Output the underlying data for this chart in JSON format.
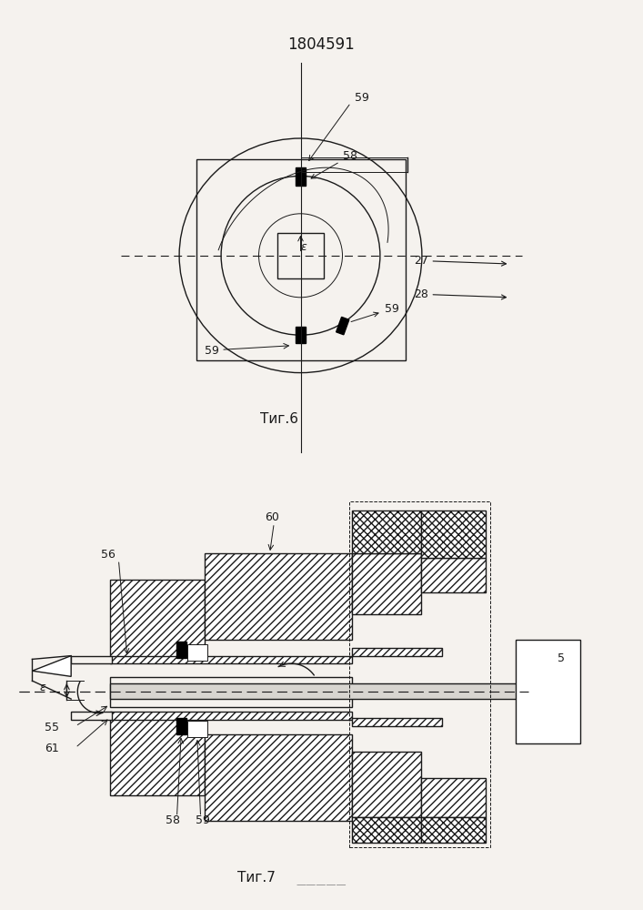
{
  "title": "1804591",
  "fig6_label": "Τиг.6",
  "fig7_label": "Τиг.7",
  "bg_color": "#f5f2ee",
  "line_color": "#1a1a1a",
  "lw_main": 1.0,
  "lw_thin": 0.7
}
